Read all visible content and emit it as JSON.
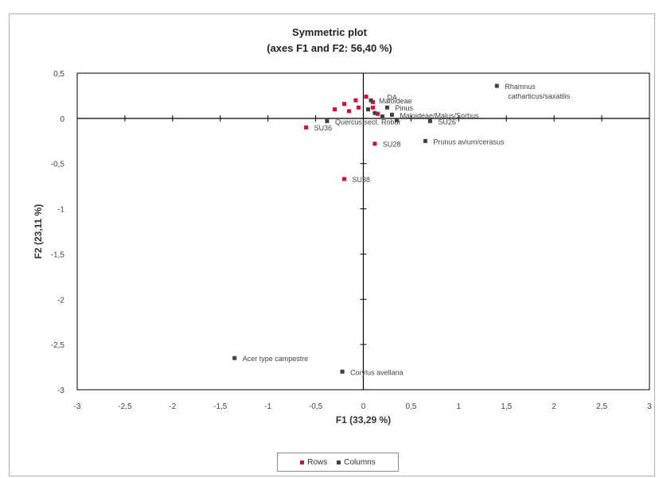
{
  "chart_data": {
    "type": "scatter",
    "title": "Symmetric plot",
    "subtitle": "(axes F1 and F2: 56,40 %)",
    "xlabel": "F1 (33,29 %)",
    "ylabel": "F2 (23,11 %)",
    "xlim": [
      -3,
      3
    ],
    "ylim": [
      -3,
      0.5
    ],
    "x_ticks": [
      -3,
      -2.5,
      -2,
      -1.5,
      -1,
      -0.5,
      0,
      0.5,
      1,
      1.5,
      2,
      2.5,
      3
    ],
    "x_tick_labels": [
      "-3",
      "-2,5",
      "-2",
      "-1,5",
      "-1",
      "-0,5",
      "0",
      "0,5",
      "1",
      "1,5",
      "2",
      "2,5",
      "3"
    ],
    "y_ticks": [
      0.5,
      0,
      -0.5,
      -1,
      -1.5,
      -2,
      -2.5,
      -3
    ],
    "y_tick_labels": [
      "0,5",
      "0",
      "-0,5",
      "-1",
      "-1,5",
      "-2",
      "-2,5",
      "-3"
    ],
    "legend": {
      "position": "bottom",
      "entries": [
        "Rows",
        "Columns"
      ]
    },
    "colors": {
      "rows": "#d0103a",
      "columns": "#404040",
      "axes": "#000000"
    },
    "series": [
      {
        "name": "Rows",
        "points": [
          {
            "x": -0.6,
            "y": -0.1,
            "label": "SU36"
          },
          {
            "x": -0.2,
            "y": -0.67,
            "label": "SU38"
          },
          {
            "x": 0.12,
            "y": -0.28,
            "label": "SU28"
          },
          {
            "x": 0.03,
            "y": 0.24,
            "label": ""
          },
          {
            "x": -0.08,
            "y": 0.2,
            "label": ""
          },
          {
            "x": -0.2,
            "y": 0.16,
            "label": ""
          },
          {
            "x": -0.3,
            "y": 0.1,
            "label": ""
          },
          {
            "x": -0.15,
            "y": 0.08,
            "label": ""
          },
          {
            "x": -0.05,
            "y": 0.12,
            "label": ""
          },
          {
            "x": 0.1,
            "y": 0.12,
            "label": ""
          },
          {
            "x": 0.15,
            "y": 0.05,
            "label": ""
          },
          {
            "x": 0.2,
            "y": 0.02,
            "label": ""
          },
          {
            "x": 0.1,
            "y": 0.18,
            "label": ""
          }
        ]
      },
      {
        "name": "Columns",
        "points": [
          {
            "x": 1.4,
            "y": 0.36,
            "label": "Rhamnus"
          },
          {
            "x": 0.65,
            "y": -0.25,
            "label": "Prunus avium/cerasus"
          },
          {
            "x": -1.35,
            "y": -2.65,
            "label": "Acer type campestre"
          },
          {
            "x": -0.22,
            "y": -2.8,
            "label": "Corylus avellana"
          },
          {
            "x": -0.38,
            "y": -0.03,
            "label": "Quercus sect. Robur"
          },
          {
            "x": 0.7,
            "y": -0.03,
            "label": "SU26"
          },
          {
            "x": 0.25,
            "y": 0.12,
            "label": "Pinus"
          },
          {
            "x": 0.08,
            "y": 0.2,
            "label": "Maloideae"
          },
          {
            "x": 0.3,
            "y": 0.04,
            "label": "Maloideae/Malus/Sorbus"
          },
          {
            "x": 0.2,
            "y": 0.02,
            "label": ""
          },
          {
            "x": 0.12,
            "y": 0.06,
            "label": ""
          },
          {
            "x": 0.35,
            "y": -0.02,
            "label": ""
          },
          {
            "x": 0.05,
            "y": 0.1,
            "label": ""
          }
        ]
      }
    ],
    "label_continuations": {
      "Rhamnus": "catharticus/saxatilis"
    },
    "extra_labels": [
      {
        "text": "DA",
        "x": 0.25,
        "y": 0.23
      }
    ]
  }
}
